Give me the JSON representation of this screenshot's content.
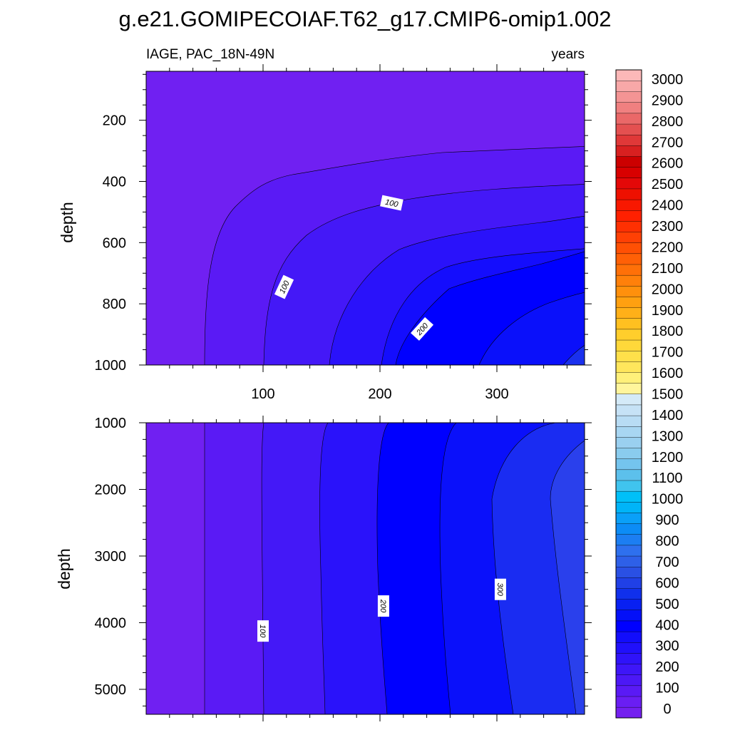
{
  "title": "g.e21.GOMIPECOIAF.T62_g17.CMIP6-omip1.002",
  "subtitle_left": "IAGE, PAC_18N-49N",
  "subtitle_right": "years",
  "chart_data": [
    {
      "type": "filled contour",
      "panel": "upper",
      "ylabel": "depth",
      "x_ticks": [
        100,
        200,
        300
      ],
      "y_ticks": [
        200,
        400,
        600,
        800,
        1000
      ],
      "ylim": [
        40,
        1000
      ],
      "y_reversed": true,
      "xlim": [
        0,
        375
      ],
      "contour_levels": [
        0,
        25,
        50,
        75,
        100,
        125,
        150,
        175,
        200,
        225,
        250,
        275,
        300
      ],
      "contour_labels": [
        {
          "text": "100",
          "x": 210,
          "y": 470
        },
        {
          "text": "100",
          "x": 118,
          "y": 745
        },
        {
          "text": "200",
          "x": 236,
          "y": 882
        }
      ]
    },
    {
      "type": "filled contour",
      "panel": "lower",
      "ylabel": "depth",
      "x_ticks": [
        100,
        200,
        300
      ],
      "y_ticks": [
        1000,
        2000,
        3000,
        4000,
        5000
      ],
      "ylim": [
        1000,
        5375
      ],
      "y_reversed": true,
      "xlim": [
        0,
        375
      ],
      "contour_labels": [
        {
          "text": "100",
          "x": 100,
          "y": 4125
        },
        {
          "text": "200",
          "x": 203,
          "y": 3750
        },
        {
          "text": "300",
          "x": 303,
          "y": 3500
        }
      ]
    }
  ],
  "colorbar": {
    "labels": [
      "3000",
      "2900",
      "2800",
      "2700",
      "2600",
      "2500",
      "2400",
      "2300",
      "2200",
      "2100",
      "2000",
      "1900",
      "1800",
      "1700",
      "1600",
      "1500",
      "1400",
      "1300",
      "1200",
      "1100",
      "1000",
      "900",
      "800",
      "700",
      "600",
      "500",
      "400",
      "300",
      "200",
      "100",
      "0"
    ],
    "colors": [
      "#7420f0",
      "#6a1ef3",
      "#5a1af5",
      "#4c18f6",
      "#3e16f8",
      "#2f13f9",
      "#2010fb",
      "#120dfc",
      "#0000ff",
      "#0410f8",
      "#0820f2",
      "#1030ec",
      "#2040e6",
      "#2a50e4",
      "#2e60e8",
      "#2e70ee",
      "#1c7ef2",
      "#0c8cf6",
      "#0aa0f8",
      "#00b4f8",
      "#00c0f8",
      "#40c4ee",
      "#5cc0ec",
      "#74c4ee",
      "#8accee",
      "#9ad0f0",
      "#a8d6f2",
      "#b8dcf4",
      "#c6e2f6",
      "#d4eaf8",
      "#fff59c",
      "#fff07a",
      "#ffe65c",
      "#ffe04a",
      "#ffd83a",
      "#ffce2c",
      "#ffc020",
      "#ffb018",
      "#ffa010",
      "#ff900c",
      "#ff800a",
      "#ff7008",
      "#ff6006",
      "#ff5004",
      "#ff4004",
      "#ff3002",
      "#ff2000",
      "#f81800",
      "#ee1000",
      "#e40808",
      "#d80000",
      "#cc0000",
      "#d82020",
      "#e03838",
      "#e45050",
      "#ea6868",
      "#f08080",
      "#f49494",
      "#f8a8a8",
      "#fcb8b8"
    ]
  }
}
